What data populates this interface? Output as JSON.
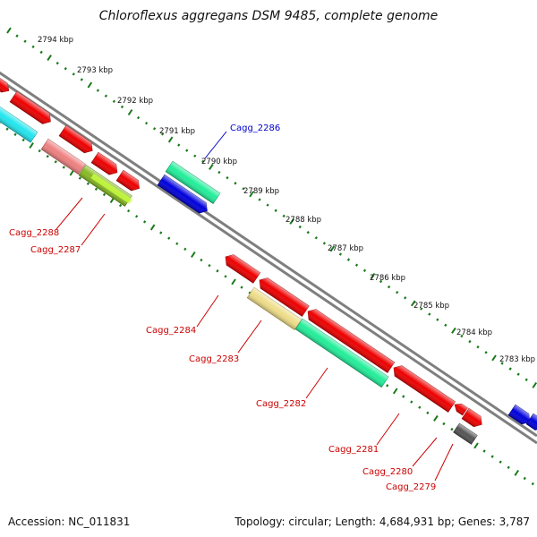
{
  "title": "Chloroflexus aggregans DSM 9485, complete genome",
  "footer": {
    "accession": "Accession: NC_011831",
    "summary": "Topology: circular; Length: 4,684,931 bp; Genes: 3,787"
  },
  "kbp_labels": [
    "2794 kbp",
    "2793 kbp",
    "2792 kbp",
    "2791 kbp",
    "2790 kbp",
    "2789 kbp",
    "2788 kbp",
    "2787 kbp",
    "2786 kbp",
    "2785 kbp",
    "2784 kbp",
    "2783 kbp"
  ],
  "gene_labels": {
    "cagg_2286": "Cagg_2286",
    "cagg_2288": "Cagg_2288",
    "cagg_2287": "Cagg_2287",
    "cagg_2284": "Cagg_2284",
    "cagg_2283": "Cagg_2283",
    "cagg_2282": "Cagg_2282",
    "cagg_2281": "Cagg_2281",
    "cagg_2280": "Cagg_2280",
    "cagg_2279": "Cagg_2279"
  },
  "colors": {
    "backbone": "#7f7f7f",
    "tick": "#1a7a1a",
    "gene_red": "#ee0000",
    "gene_blue": "#0000dd",
    "gene_cyan": "#22e6ee",
    "gene_spring": "#22ee99",
    "gene_salmon": "#ee8080",
    "gene_olive": "#88bb22",
    "gene_khaki": "#eedd88",
    "gene_grey": "#555555",
    "label_red": "#cc0000",
    "label_blue": "#0000cc"
  }
}
